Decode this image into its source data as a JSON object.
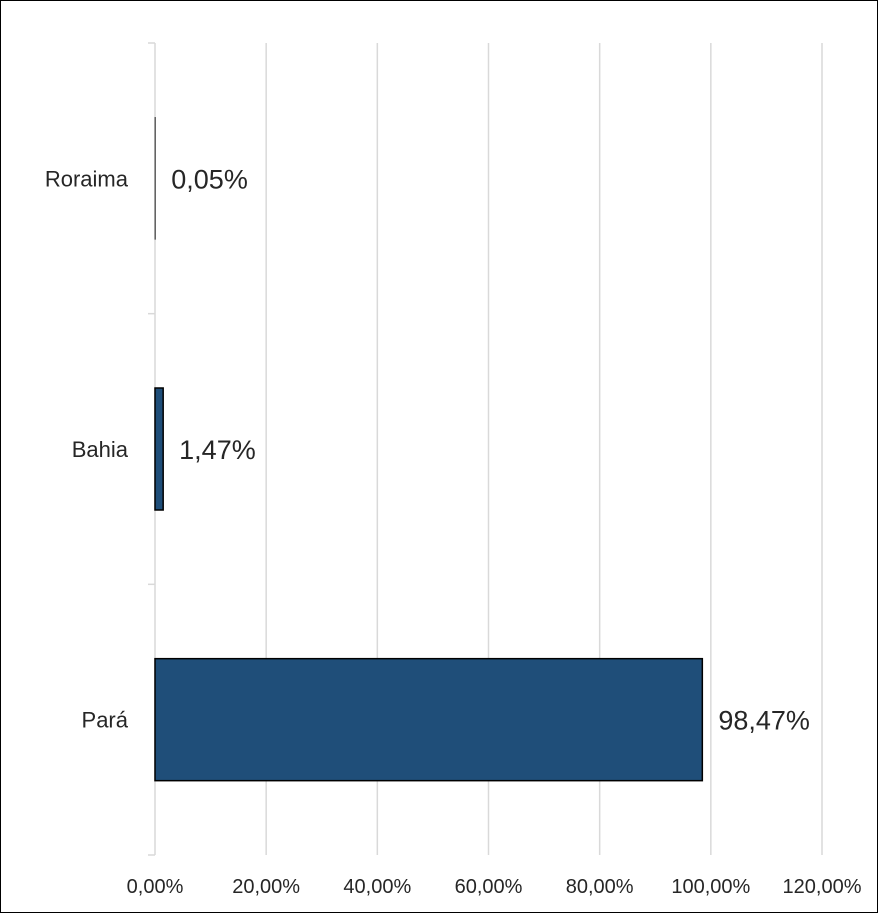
{
  "chart_data": {
    "type": "bar",
    "orientation": "horizontal",
    "categories": [
      "Roraima",
      "Bahia",
      "Pará"
    ],
    "values": [
      0.05,
      1.47,
      98.47
    ],
    "data_labels": [
      "0,05%",
      "1,47%",
      "98,47%"
    ],
    "xlim": [
      0,
      120
    ],
    "x_ticks": [
      0,
      20,
      40,
      60,
      80,
      100,
      120
    ],
    "x_tick_labels": [
      "0,00%",
      "20,00%",
      "40,00%",
      "60,00%",
      "80,00%",
      "100,00%",
      "120,00%"
    ],
    "grid": true,
    "legend": "none",
    "colors": {
      "bar": "#1f4e79",
      "bar_edge": "#000000",
      "grid": "#d9d9d9",
      "text": "#262626"
    }
  }
}
